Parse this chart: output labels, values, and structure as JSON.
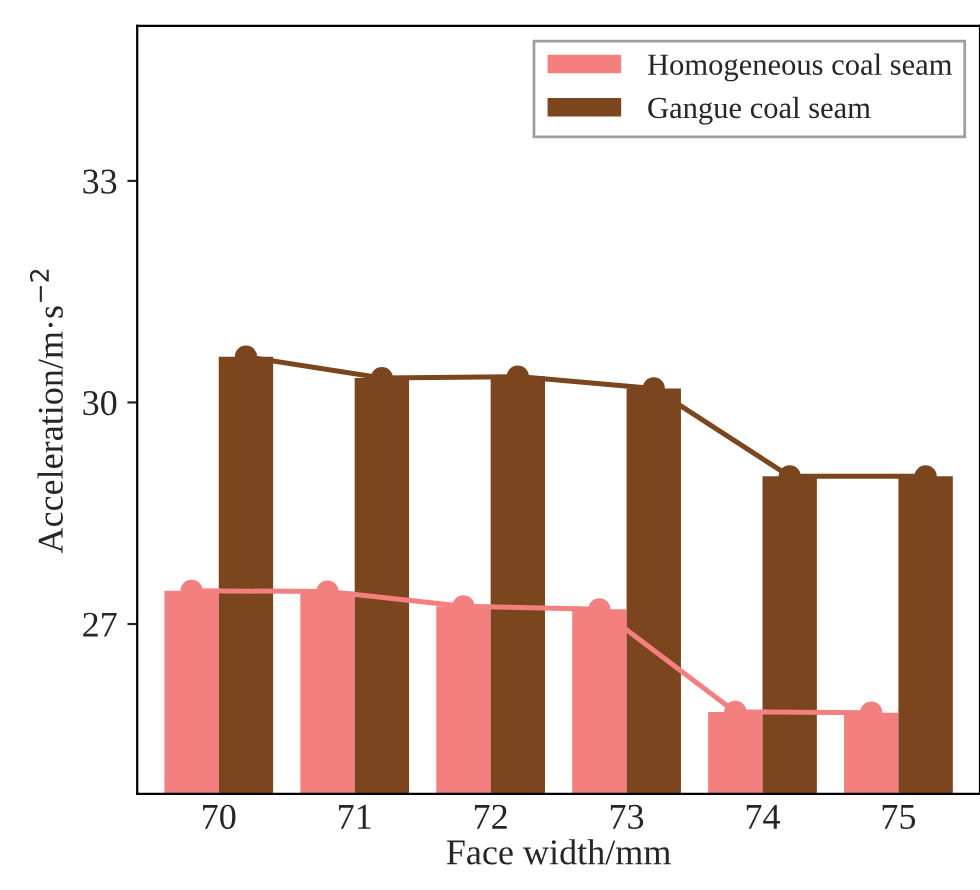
{
  "chart_data": {
    "type": "bar",
    "xlabel": "Face width/mm",
    "ylabel": "Acceleration/m·s$^{−2}$",
    "categories": [
      "70",
      "71",
      "72",
      "73",
      "74",
      "75"
    ],
    "series": [
      {
        "name": "Homogeneous coal seam",
        "color": "#f47f7f",
        "values": [
          27.45,
          27.44,
          27.24,
          27.2,
          25.81,
          25.8
        ]
      },
      {
        "name": "Gangue coal seam",
        "color": "#7b461e",
        "values": [
          30.62,
          30.33,
          30.35,
          30.19,
          29.0,
          29.0
        ]
      },
      {
        "type": "line",
        "color": "#f47f7f",
        "marker": "circle",
        "values": [
          27.45,
          27.44,
          27.24,
          27.2,
          25.81,
          25.8
        ]
      },
      {
        "type": "line",
        "color": "#7b461e",
        "marker": "circle",
        "values": [
          30.62,
          30.33,
          30.35,
          30.19,
          29.0,
          29.0
        ]
      }
    ],
    "ylim": [
      24.7,
      35.1
    ],
    "yticks": [
      27,
      30,
      33
    ],
    "legend": "top right",
    "grid": false
  }
}
